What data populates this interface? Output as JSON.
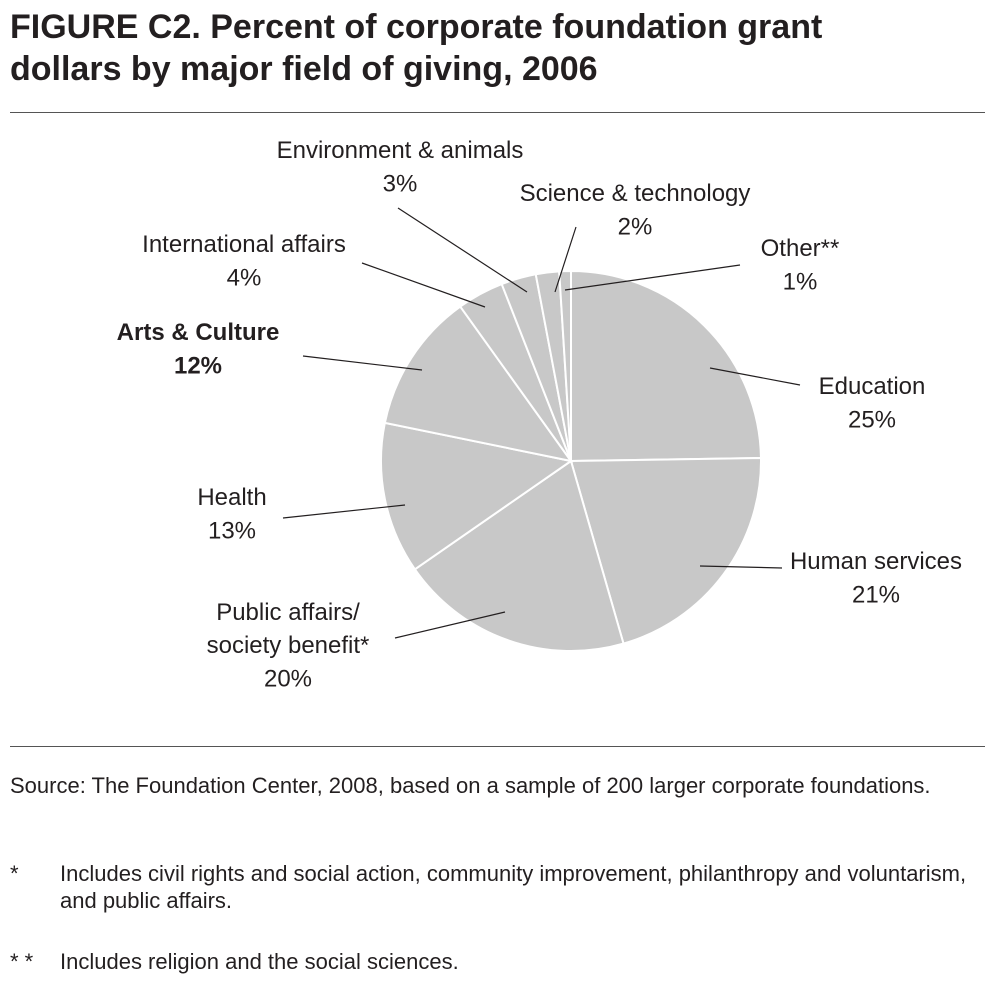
{
  "chart_data": {
    "type": "pie",
    "title": "FIGURE C2. Percent of corporate foundation grant dollars by major field of giving, 2006",
    "categories": [
      "Education",
      "Human services",
      "Public affairs/\nsociety benefit*",
      "Health",
      "Arts & Culture",
      "International affairs",
      "Environment & animals",
      "Science & technology",
      "Other**"
    ],
    "values": [
      25,
      21,
      20,
      13,
      12,
      4,
      3,
      2,
      1
    ],
    "value_labels": [
      "25%",
      "21%",
      "20%",
      "13%",
      "12%",
      "4%",
      "3%",
      "2%",
      "1%"
    ],
    "color": "#c8c8c8",
    "source": "Source: The Foundation Center, 2008, based on a sample of 200 larger corporate foundations.",
    "notes": [
      {
        "marker": "*",
        "text": "Includes civil rights and social action, community improvement, philanthropy and voluntarism, and public affairs."
      },
      {
        "marker": "* *",
        "text": "Includes religion and the social sciences."
      }
    ]
  }
}
